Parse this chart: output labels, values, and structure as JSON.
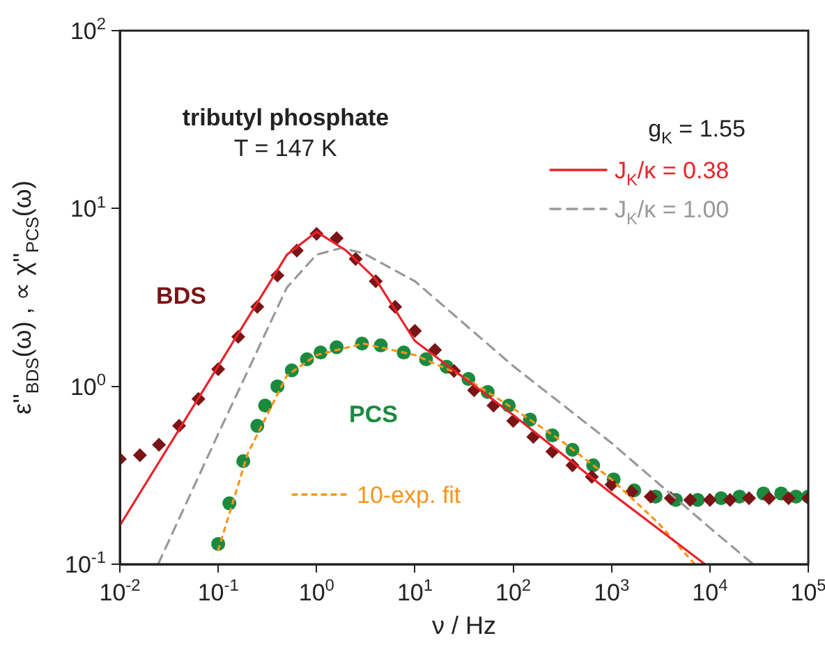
{
  "chart_data": {
    "type": "scatter",
    "xlabel": "ν / Hz",
    "ylabel": "ε''$_{BDS}$(ω) , ∝ χ''$_{PCS}$(ω)",
    "log": "xy",
    "grid": false,
    "legend": "right",
    "xlim": [
      0.01,
      100000
    ],
    "ylim": [
      0.1,
      100
    ],
    "xticks": [
      {
        "value": 0.01,
        "label": "10$^{-2}$"
      },
      {
        "value": 0.1,
        "label": "10$^{-1}$"
      },
      {
        "value": 1,
        "label": "10$^{0}$"
      },
      {
        "value": 10,
        "label": "10$^{1}$"
      },
      {
        "value": 100,
        "label": "10$^{2}$"
      },
      {
        "value": 1000,
        "label": "10$^{3}$"
      },
      {
        "value": 10000,
        "label": "10$^{4}$"
      },
      {
        "value": 100000,
        "label": "10$^{5}$"
      }
    ],
    "yticks": [
      {
        "value": 0.1,
        "label": "10$^{-1}$"
      },
      {
        "value": 1,
        "label": "10$^{0}$"
      },
      {
        "value": 10,
        "label": "10$^{1}$"
      },
      {
        "value": 100,
        "label": "10$^{2}$"
      }
    ],
    "annotations": [
      "tributyl phosphate",
      "T = 147 K",
      "g$_{K}$ = 1.55"
    ],
    "series": [
      {
        "name": "BDS",
        "marker": "diamond",
        "color": "#7a1416",
        "x": [
          0.01,
          0.016,
          0.025,
          0.04,
          0.063,
          0.1,
          0.16,
          0.25,
          0.4,
          0.63,
          1,
          1.6,
          2.5,
          4,
          6.3,
          10,
          16,
          25,
          40,
          63,
          100,
          160,
          250,
          400,
          630,
          1000,
          1600,
          2500,
          4000,
          6300,
          10000,
          16000,
          25000,
          40000,
          63000,
          100000
        ],
        "values": [
          0.39,
          0.41,
          0.47,
          0.6,
          0.85,
          1.25,
          1.9,
          2.8,
          4.2,
          5.8,
          7.2,
          6.8,
          5.2,
          3.9,
          2.8,
          2.05,
          1.6,
          1.22,
          0.95,
          0.78,
          0.64,
          0.52,
          0.43,
          0.36,
          0.31,
          0.28,
          0.255,
          0.24,
          0.235,
          0.23,
          0.23,
          0.23,
          0.235,
          0.235,
          0.235,
          0.235
        ]
      },
      {
        "name": "PCS",
        "marker": "circle",
        "color": "#1b8a3e",
        "x": [
          0.1,
          0.13,
          0.18,
          0.25,
          0.3,
          0.4,
          0.56,
          0.8,
          1.1,
          1.6,
          2.9,
          4.5,
          7.7,
          13,
          21,
          35,
          55,
          90,
          148,
          250,
          400,
          650,
          1050,
          1700,
          2800,
          4500,
          7500,
          13000,
          20000,
          35000,
          53000,
          75000,
          100000
        ],
        "values": [
          0.13,
          0.22,
          0.38,
          0.6,
          0.78,
          1.0,
          1.23,
          1.42,
          1.55,
          1.66,
          1.74,
          1.7,
          1.55,
          1.42,
          1.29,
          1.1,
          0.93,
          0.78,
          0.65,
          0.53,
          0.44,
          0.36,
          0.3,
          0.26,
          0.24,
          0.23,
          0.23,
          0.235,
          0.24,
          0.25,
          0.25,
          0.24,
          0.24
        ]
      },
      {
        "name": "J$_{K}$/κ = 0.38",
        "type": "line",
        "line_style": "solid",
        "marker": "none",
        "color": "#e8232a",
        "x": [
          0.01,
          0.1,
          0.5,
          1,
          2,
          4,
          10,
          100,
          1000,
          8900
        ],
        "values": [
          0.165,
          1.3,
          5.5,
          7.4,
          5.8,
          4.0,
          1.8,
          0.69,
          0.25,
          0.1
        ]
      },
      {
        "name": "J$_{K}$/κ = 1.00",
        "type": "line",
        "line_style": "dashed",
        "marker": "none",
        "color": "#999999",
        "x": [
          0.0245,
          0.1,
          0.5,
          1,
          1.8,
          3,
          10,
          100,
          1000,
          10000,
          27500
        ],
        "values": [
          0.1,
          0.54,
          3.6,
          5.5,
          6.0,
          5.6,
          3.9,
          1.3,
          0.48,
          0.16,
          0.1
        ]
      },
      {
        "name": "10-exp. fit",
        "type": "line",
        "line_style": "dotted",
        "marker": "none",
        "color": "#f7941d",
        "x": [
          0.1,
          0.2,
          0.5,
          1,
          3,
          10,
          30,
          100,
          300,
          1000,
          3000,
          7000
        ],
        "values": [
          0.12,
          0.42,
          1.15,
          1.5,
          1.74,
          1.5,
          1.15,
          0.75,
          0.5,
          0.3,
          0.17,
          0.1
        ]
      }
    ]
  }
}
